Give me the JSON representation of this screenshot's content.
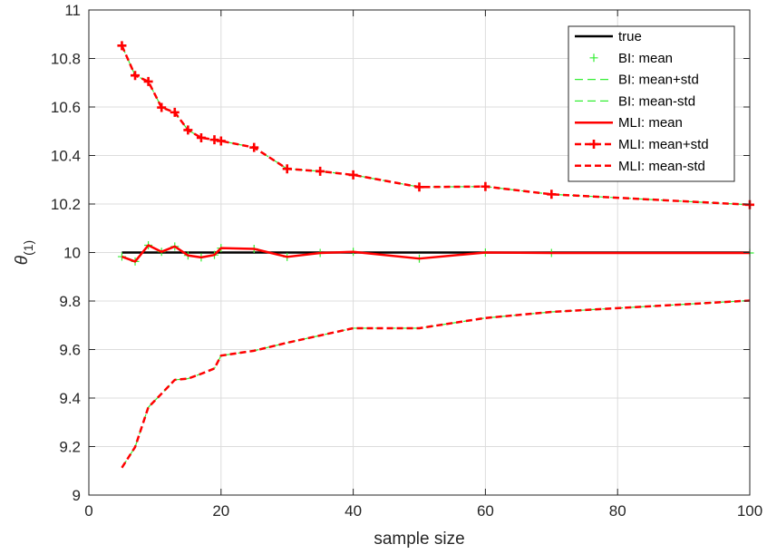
{
  "chart_data": {
    "type": "line",
    "xlabel": "sample size",
    "ylabel_main": "θ",
    "ylabel_sub": "(1)",
    "xlim": [
      0,
      100
    ],
    "ylim": [
      9,
      11
    ],
    "xticks": [
      0,
      20,
      40,
      60,
      80,
      100
    ],
    "yticks": [
      9,
      9.2,
      9.4,
      9.6,
      9.8,
      10,
      10.2,
      10.4,
      10.6,
      10.8,
      11
    ],
    "grid": true,
    "legend_position": "top-right",
    "x": [
      5,
      7,
      9,
      11,
      13,
      15,
      17,
      19,
      20,
      25,
      30,
      35,
      40,
      50,
      60,
      70,
      100
    ],
    "series": [
      {
        "name": "true",
        "color": "#000000",
        "style": "solid",
        "marker": "none",
        "values": [
          10,
          10,
          10,
          10,
          10,
          10,
          10,
          10,
          10,
          10,
          10,
          10,
          10,
          10,
          10,
          10,
          10
        ]
      },
      {
        "name": "BI: mean",
        "color": "#33ee33",
        "style": "none",
        "marker": "plus",
        "values": [
          9.983,
          9.963,
          10.03,
          10.003,
          10.025,
          9.988,
          9.98,
          9.99,
          10.018,
          10.015,
          9.982,
          9.998,
          10.003,
          9.975,
          10.0,
          9.998,
          9.998
        ]
      },
      {
        "name": "BI: mean+std",
        "color": "#33ee33",
        "style": "dashed",
        "marker": "none",
        "values": [
          10.853,
          10.73,
          10.705,
          10.598,
          10.578,
          10.505,
          10.473,
          10.465,
          10.46,
          10.433,
          10.345,
          10.335,
          10.32,
          10.27,
          10.272,
          10.24,
          10.197
        ]
      },
      {
        "name": "BI: mean-std",
        "color": "#33ee33",
        "style": "dashed",
        "marker": "none",
        "values": [
          9.113,
          9.198,
          9.362,
          9.418,
          9.475,
          9.48,
          9.5,
          9.522,
          9.575,
          9.595,
          9.628,
          9.658,
          9.688,
          9.688,
          9.73,
          9.755,
          9.802
        ]
      },
      {
        "name": "MLI: mean",
        "color": "#ff0000",
        "style": "solid",
        "marker": "none",
        "values": [
          9.983,
          9.963,
          10.03,
          10.003,
          10.025,
          9.988,
          9.98,
          9.99,
          10.018,
          10.015,
          9.982,
          9.998,
          10.003,
          9.975,
          10.0,
          9.998,
          9.998
        ]
      },
      {
        "name": "MLI: mean+std",
        "color": "#ff0000",
        "style": "dashed",
        "marker": "plus",
        "values": [
          10.853,
          10.73,
          10.705,
          10.598,
          10.578,
          10.505,
          10.473,
          10.465,
          10.46,
          10.433,
          10.345,
          10.335,
          10.32,
          10.27,
          10.272,
          10.24,
          10.197
        ]
      },
      {
        "name": "MLI: mean-std",
        "color": "#ff0000",
        "style": "dashed",
        "marker": "none",
        "values": [
          9.113,
          9.198,
          9.362,
          9.418,
          9.475,
          9.48,
          9.5,
          9.522,
          9.575,
          9.595,
          9.628,
          9.658,
          9.688,
          9.688,
          9.73,
          9.755,
          9.802
        ]
      }
    ]
  }
}
